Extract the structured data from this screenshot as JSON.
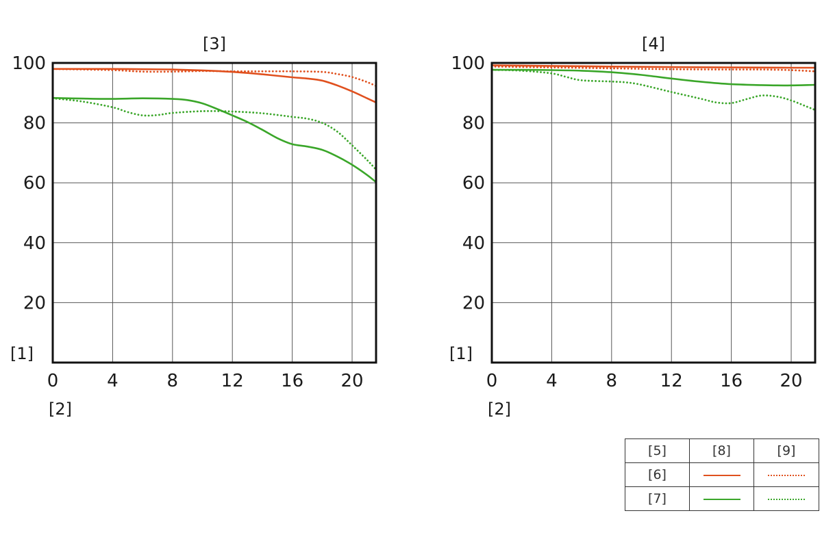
{
  "chart_data": [
    {
      "type": "line",
      "title": "[3]",
      "ylabel": "[1]",
      "xlabel": "[2]",
      "xlim": [
        0,
        21.6
      ],
      "ylim": [
        0,
        100
      ],
      "xticks": [
        "0",
        "4",
        "8",
        "12",
        "16",
        "20"
      ],
      "yticks": [
        "20",
        "40",
        "60",
        "80",
        "100"
      ],
      "grid": true,
      "series": [
        {
          "style": "solid",
          "color": "#e0501e",
          "x": [
            0,
            2,
            4,
            6,
            8,
            10,
            12,
            14,
            16,
            17,
            18,
            19,
            20,
            21,
            21.6
          ],
          "y": [
            98,
            98,
            98,
            97.9,
            97.8,
            97.5,
            97,
            96.2,
            95.2,
            94.8,
            94.1,
            92.5,
            90.5,
            88.2,
            86.8
          ]
        },
        {
          "style": "dotted",
          "color": "#e0501e",
          "x": [
            0,
            4,
            6,
            8,
            10,
            12,
            14,
            16,
            18,
            19,
            20,
            21,
            21.6
          ],
          "y": [
            98,
            97.6,
            97.1,
            97.1,
            97.3,
            97.2,
            97.2,
            97.2,
            97,
            96.3,
            95.3,
            93.6,
            92.3
          ]
        },
        {
          "style": "solid",
          "color": "#3aa629",
          "x": [
            0,
            2,
            4,
            6,
            8,
            9,
            10,
            11,
            12,
            13,
            14,
            15,
            16,
            17,
            18,
            19,
            20,
            21,
            21.6
          ],
          "y": [
            88.3,
            88.1,
            88,
            88.2,
            88,
            87.6,
            86.5,
            84.6,
            82.5,
            80.3,
            77.7,
            74.9,
            72.9,
            72.1,
            71,
            68.8,
            66,
            62.6,
            60.2
          ]
        },
        {
          "style": "dotted",
          "color": "#3aa629",
          "x": [
            0,
            2,
            4,
            5,
            6,
            7,
            8,
            10,
            12,
            14,
            16,
            17,
            18,
            19,
            20,
            21,
            21.6
          ],
          "y": [
            88.2,
            87.1,
            85.2,
            83.6,
            82.5,
            82.6,
            83.3,
            83.9,
            83.8,
            83.2,
            82,
            81.4,
            80,
            77.1,
            72.5,
            67.6,
            64.4
          ]
        }
      ]
    },
    {
      "type": "line",
      "title": "[4]",
      "ylabel": "[1]",
      "xlabel": "[2]",
      "xlim": [
        0,
        21.6
      ],
      "ylim": [
        0,
        100
      ],
      "xticks": [
        "0",
        "4",
        "8",
        "12",
        "16",
        "20"
      ],
      "yticks": [
        "20",
        "40",
        "60",
        "80",
        "100"
      ],
      "grid": true,
      "series": [
        {
          "style": "solid",
          "color": "#e0501e",
          "x": [
            0,
            4,
            8,
            12,
            16,
            20,
            21.6
          ],
          "y": [
            99.2,
            99,
            98.8,
            98.6,
            98.5,
            98.4,
            98.4
          ]
        },
        {
          "style": "dotted",
          "color": "#e0501e",
          "x": [
            0,
            4,
            8,
            12,
            16,
            18,
            20,
            21.6
          ],
          "y": [
            98.8,
            98.5,
            98.2,
            97.9,
            97.8,
            97.8,
            97.6,
            97.2
          ]
        },
        {
          "style": "solid",
          "color": "#3aa629",
          "x": [
            0,
            2,
            4,
            6,
            8,
            10,
            12,
            14,
            16,
            18,
            19,
            20,
            21.6
          ],
          "y": [
            97.7,
            97.7,
            97.6,
            97.4,
            96.9,
            96,
            94.8,
            93.7,
            92.9,
            92.6,
            92.5,
            92.5,
            92.7
          ]
        },
        {
          "style": "dotted",
          "color": "#3aa629",
          "x": [
            0,
            2,
            4,
            5,
            6,
            8,
            9,
            10,
            12,
            14,
            15,
            16,
            17,
            18,
            19,
            20,
            21,
            21.6
          ],
          "y": [
            97.7,
            97.4,
            96.5,
            95.3,
            94.2,
            93.8,
            93.5,
            92.7,
            90.3,
            88,
            86.8,
            86.6,
            87.9,
            89.1,
            88.8,
            87.5,
            85.5,
            84.3
          ]
        }
      ]
    }
  ],
  "legend": {
    "header": [
      "[5]",
      "[8]",
      "[9]"
    ],
    "rows": [
      {
        "label": "[6]",
        "color": "#e0501e"
      },
      {
        "label": "[7]",
        "color": "#3aa629"
      }
    ]
  }
}
